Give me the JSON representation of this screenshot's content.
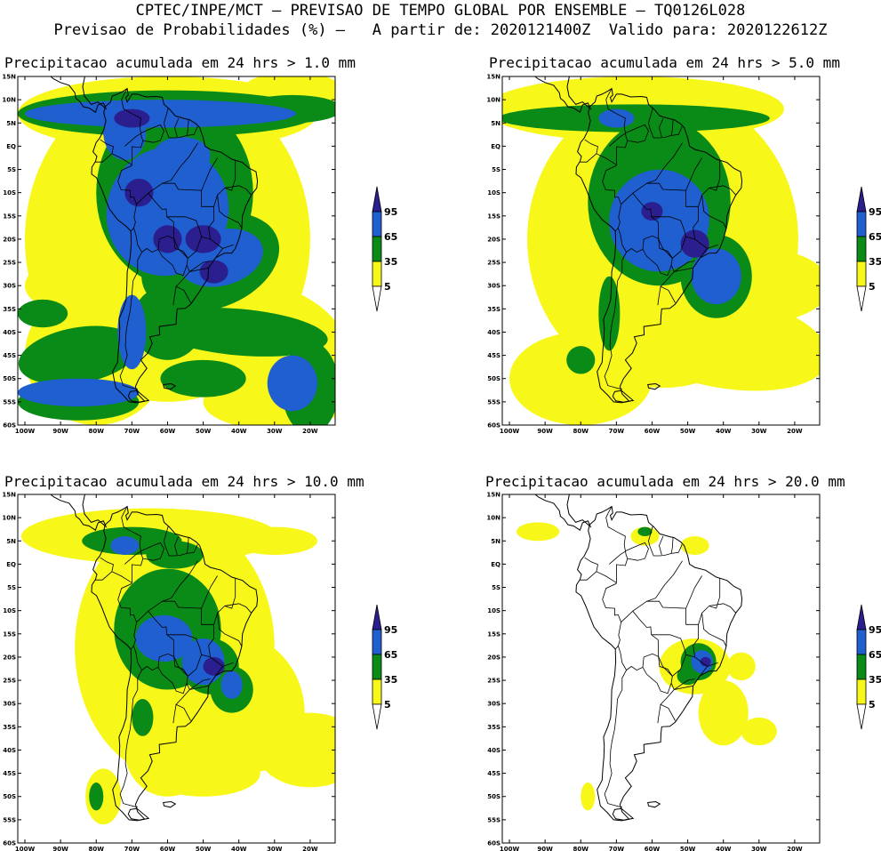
{
  "header": {
    "line1": "CPTEC/INPE/MCT – PREVISAO DE TEMPO GLOBAL POR ENSEMBLE – TQ0126L028",
    "line2": "Previsao de Probabilidades (%) –   A partir de: 2020121400Z  Valido para: 2020122612Z"
  },
  "axes": {
    "lat_labels": [
      "15N",
      "10N",
      "5N",
      "EQ",
      "5S",
      "10S",
      "15S",
      "20S",
      "25S",
      "30S",
      "35S",
      "40S",
      "45S",
      "50S",
      "55S",
      "60S"
    ],
    "lon_labels": [
      "100W",
      "90W",
      "80W",
      "70W",
      "60W",
      "50W",
      "40W",
      "30W",
      "20W"
    ]
  },
  "legend": {
    "levels": [
      "95",
      "65",
      "35",
      "5"
    ],
    "colors": {
      "c95": "#2b1f8f",
      "c65": "#1f5fcf",
      "c35": "#0a8a17",
      "c5": "#f7f71a"
    }
  },
  "panels": [
    {
      "title": "Precipitacao acumulada em 24 hrs > 1.0 mm"
    },
    {
      "title": "Precipitacao acumulada em 24 hrs > 5.0 mm"
    },
    {
      "title": "Precipitacao acumulada em 24 hrs > 10.0 mm"
    },
    {
      "title": "Precipitacao acumulada em 24 hrs > 20.0 mm"
    }
  ]
}
